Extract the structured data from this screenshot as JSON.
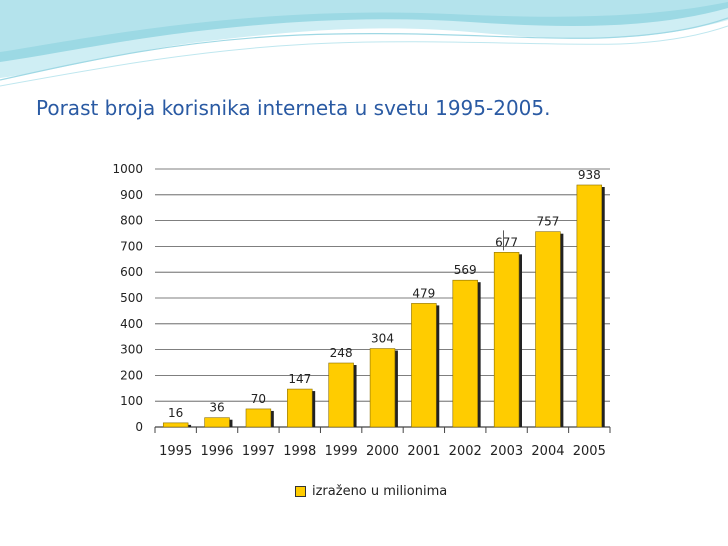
{
  "slide": {
    "title": "Porast broja korisnika interneta u svetu 1995-2005."
  },
  "colors": {
    "bar_fill": "#ffcc00",
    "bar_shadow": "#222222",
    "title": "#2a5aa3",
    "wave_light": "#cfeef4",
    "wave_mid": "#8fd3e0"
  },
  "chart_data": {
    "type": "bar",
    "title": "",
    "xlabel": "",
    "ylabel": "",
    "categories": [
      "1995",
      "1996",
      "1997",
      "1998",
      "1999",
      "2000",
      "2001",
      "2002",
      "2003",
      "2004",
      "2005"
    ],
    "series": [
      {
        "name": "izraženo u milionima",
        "values": [
          16,
          36,
          70,
          147,
          248,
          304,
          479,
          569,
          677,
          757,
          938
        ]
      }
    ],
    "data_labels": [
      "16",
      "36",
      "70",
      "147",
      "248",
      "304",
      "479",
      "569",
      "677",
      "757",
      "938"
    ],
    "ylim": [
      0,
      1000
    ],
    "y_ticks": [
      0,
      100,
      200,
      300,
      400,
      500,
      600,
      700,
      800,
      900,
      1000
    ],
    "grid": true,
    "legend_position": "bottom"
  },
  "legend": {
    "label": "izraženo u milionima"
  }
}
